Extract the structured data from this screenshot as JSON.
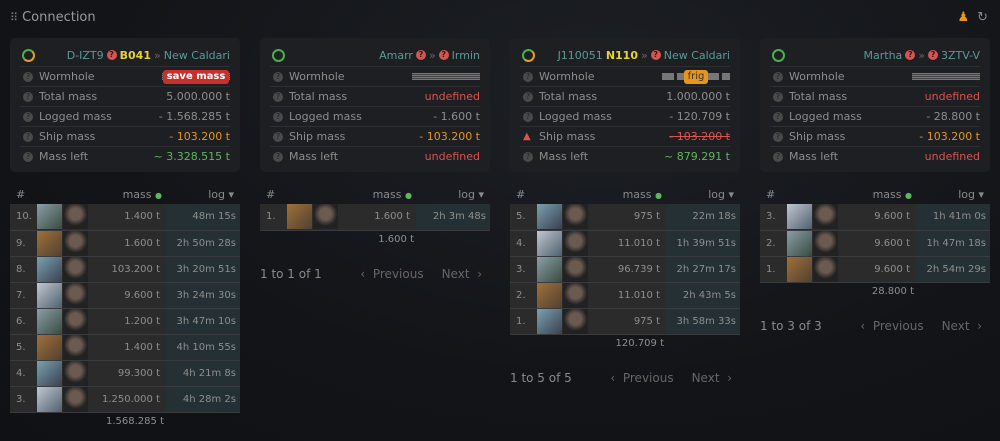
{
  "header": {
    "title": "Connection",
    "grip_icon": "grip-icon",
    "user_icon": "person-icon",
    "refresh_icon": "refresh-icon"
  },
  "labels": {
    "wormhole": "Wormhole",
    "total": "Total mass",
    "logged": "Logged mass",
    "ship": "Ship mass",
    "left": "Mass left",
    "col_num": "#",
    "col_mass": "mass",
    "col_log": "log",
    "prev": "Previous",
    "next": "Next"
  },
  "colors": {
    "accent": "#5a9a94",
    "warning": "#e8951c",
    "ok": "#5cb85c",
    "error": "#d9534f"
  },
  "connections": [
    {
      "status": "partial",
      "from": "D-IZT9",
      "from_unknown": true,
      "type": "B041",
      "to": "New Caldari",
      "to_unknown": false,
      "badge": "save mass",
      "badge_style": "red",
      "total": "5.000.000 t",
      "total_style": "",
      "logged": "- 1.568.285 t",
      "ship": "- 103.200 t",
      "ship_style": "orange",
      "ship_warn": false,
      "left": "~ 3.328.515 t",
      "left_style": "green",
      "bar_style": "",
      "log": [
        [
          "10.",
          "1.400 t",
          "48m  15s"
        ],
        [
          "9.",
          "1.600 t",
          "2h 50m  28s"
        ],
        [
          "8.",
          "103.200 t",
          "3h 20m  51s"
        ],
        [
          "7.",
          "9.600 t",
          "3h 24m  30s"
        ],
        [
          "6.",
          "1.200 t",
          "3h 47m  10s"
        ],
        [
          "5.",
          "1.400 t",
          "4h 10m  55s"
        ],
        [
          "4.",
          "99.300 t",
          "4h  21m   8s"
        ],
        [
          "3.",
          "1.250.000 t",
          "4h 28m   2s"
        ]
      ],
      "sum": "1.568.285 t",
      "pagination": ""
    },
    {
      "status": "ok",
      "from": "Amarr",
      "from_unknown": true,
      "type": "",
      "to": "Irmin",
      "to_unknown": true,
      "badge": "",
      "badge_style": "",
      "total": "undefined",
      "total_style": "red",
      "logged": "- 1.600 t",
      "ship": "- 103.200 t",
      "ship_style": "orange",
      "ship_warn": false,
      "left": "undefined",
      "left_style": "red",
      "bar_style": "",
      "log": [
        [
          "1.",
          "1.600 t",
          "2h  3m  48s"
        ]
      ],
      "sum": "1.600 t",
      "pagination": "1 to 1 of 1"
    },
    {
      "status": "partial",
      "from": "J110051",
      "from_unknown": false,
      "type": "N110",
      "to": "New Caldari",
      "to_unknown": true,
      "badge": "frig",
      "badge_style": "frig",
      "total": "1.000.000 t",
      "total_style": "",
      "logged": "- 120.709 t",
      "ship": "- 103.200 t",
      "ship_style": "strike",
      "ship_warn": true,
      "left": "~ 879.291 t",
      "left_style": "green",
      "bar_style": "dash",
      "log": [
        [
          "5.",
          "975 t",
          "22m  18s"
        ],
        [
          "4.",
          "11.010 t",
          "1h 39m  51s"
        ],
        [
          "3.",
          "96.739 t",
          "2h 27m  17s"
        ],
        [
          "2.",
          "11.010 t",
          "2h 43m   5s"
        ],
        [
          "1.",
          "975 t",
          "3h 58m  33s"
        ]
      ],
      "sum": "120.709 t",
      "pagination": "1 to 5 of 5"
    },
    {
      "status": "ok",
      "from": "Martha",
      "from_unknown": true,
      "type": "",
      "to": "3ZTV-V",
      "to_unknown": true,
      "badge": "",
      "badge_style": "",
      "total": "undefined",
      "total_style": "red",
      "logged": "- 28.800 t",
      "ship": "- 103.200 t",
      "ship_style": "orange",
      "ship_warn": false,
      "left": "undefined",
      "left_style": "red",
      "bar_style": "",
      "log": [
        [
          "3.",
          "9.600 t",
          "1h  41m   0s"
        ],
        [
          "2.",
          "9.600 t",
          "1h 47m  18s"
        ],
        [
          "1.",
          "9.600 t",
          "2h 54m  29s"
        ]
      ],
      "sum": "28.800 t",
      "pagination": "1 to 3 of 3"
    }
  ]
}
